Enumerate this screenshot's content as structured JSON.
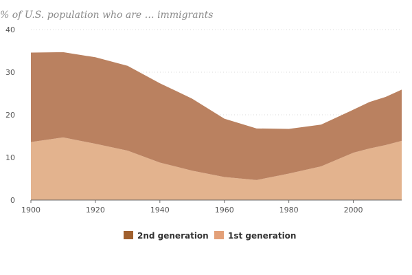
{
  "chart_data": {
    "type": "area",
    "title": "% of U.S. population who are … immigrants",
    "stacked": true,
    "x": [
      1900,
      1910,
      1920,
      1930,
      1940,
      1950,
      1960,
      1970,
      1980,
      1990,
      2000,
      2005,
      2010,
      2015
    ],
    "series": [
      {
        "name": "1st generation",
        "color": "#e3b38e",
        "values": [
          13.6,
          14.7,
          13.2,
          11.6,
          8.8,
          6.9,
          5.4,
          4.7,
          6.2,
          7.9,
          11.1,
          12.1,
          12.9,
          13.9
        ]
      },
      {
        "name": "2nd generation",
        "color": "#ba8160",
        "values": [
          21.0,
          20.0,
          20.3,
          19.9,
          18.6,
          16.9,
          13.7,
          12.1,
          10.5,
          9.8,
          10.1,
          10.9,
          11.3,
          12.0
        ]
      }
    ],
    "legend": [
      {
        "name": "2nd generation",
        "color": "#a0602e"
      },
      {
        "name": "1st generation",
        "color": "#e3a078"
      }
    ],
    "xticks": [
      1900,
      1920,
      1940,
      1960,
      1980,
      2000
    ],
    "yticks": [
      0,
      10,
      20,
      30,
      40
    ],
    "xlim": [
      1900,
      2015
    ],
    "ylim": [
      0,
      40
    ],
    "grid": true,
    "legend_position": "bottom-center",
    "xlabel": "",
    "ylabel": ""
  }
}
